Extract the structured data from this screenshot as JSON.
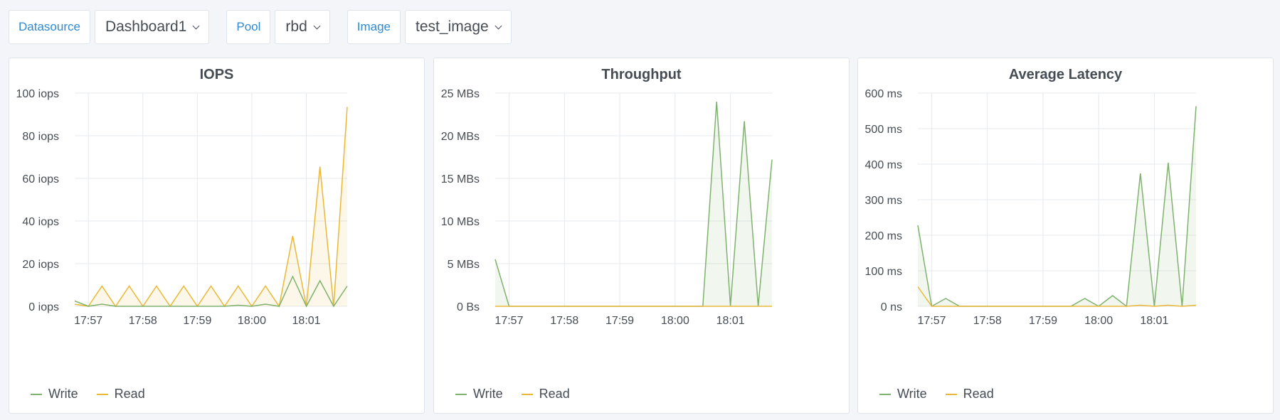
{
  "variables": [
    {
      "label": "Datasource",
      "value": "Dashboard1"
    },
    {
      "label": "Pool",
      "value": "rbd"
    },
    {
      "label": "Image",
      "value": "test_image"
    }
  ],
  "colors": {
    "write": "#7eb26d",
    "read": "#eab839"
  },
  "x_ticks": [
    "17:57",
    "17:58",
    "17:59",
    "18:00",
    "18:01"
  ],
  "panels": [
    {
      "title": "IOPS",
      "legend": [
        "Write",
        "Read"
      ],
      "chart_data": {
        "type": "line",
        "y_unit": "iops",
        "ylim": [
          0,
          100
        ],
        "y_ticks": [
          0,
          20,
          40,
          60,
          80,
          100
        ],
        "y_tick_labels": [
          "0 iops",
          "20 iops",
          "40 iops",
          "60 iops",
          "80 iops",
          "100 iops"
        ],
        "x_tick_labels": [
          "17:57",
          "17:58",
          "17:59",
          "18:00",
          "18:01"
        ],
        "x_ticks_at": [
          1,
          5,
          9,
          13,
          17
        ],
        "x_count": 21,
        "grid": true,
        "legend_position": "bottom-left",
        "series": [
          {
            "name": "Write",
            "color": "#7eb26d",
            "fill": false,
            "values": [
              2.5,
              0,
              1,
              0,
              0,
              0,
              0,
              0,
              0,
              0,
              0,
              0,
              0.5,
              0,
              1,
              0,
              14,
              0,
              12,
              0,
              9.5
            ]
          },
          {
            "name": "Read",
            "color": "#eab839",
            "fill": true,
            "values": [
              1,
              0,
              9.5,
              0,
              9.5,
              0,
              9.5,
              0,
              9.5,
              0,
              9.5,
              0,
              9.5,
              0,
              9.5,
              0,
              33,
              0,
              65.5,
              0,
              93.5
            ]
          }
        ]
      }
    },
    {
      "title": "Throughput",
      "legend": [
        "Write",
        "Read"
      ],
      "chart_data": {
        "type": "line",
        "y_unit": "bytes/s",
        "ylim": [
          0,
          25
        ],
        "y_ticks": [
          0,
          5,
          10,
          15,
          20,
          25
        ],
        "y_tick_labels": [
          "0 Bs",
          "5 MBs",
          "10 MBs",
          "15 MBs",
          "20 MBs",
          "25 MBs"
        ],
        "x_tick_labels": [
          "17:57",
          "17:58",
          "17:59",
          "18:00",
          "18:01"
        ],
        "x_ticks_at": [
          1,
          5,
          9,
          13,
          17
        ],
        "x_count": 21,
        "grid": true,
        "legend_position": "bottom-left",
        "series": [
          {
            "name": "Write",
            "color": "#7eb26d",
            "fill": true,
            "values": [
              5.5,
              0,
              0,
              0,
              0,
              0,
              0,
              0,
              0,
              0,
              0,
              0,
              0,
              0,
              0,
              0,
              24,
              0,
              21.7,
              0,
              17.2
            ]
          },
          {
            "name": "Read",
            "color": "#eab839",
            "fill": false,
            "values": [
              0,
              0,
              0,
              0,
              0,
              0,
              0,
              0,
              0,
              0,
              0,
              0,
              0,
              0,
              0,
              0,
              0,
              0,
              0,
              0,
              0
            ]
          }
        ]
      }
    },
    {
      "title": "Average Latency",
      "legend": [
        "Write",
        "Read"
      ],
      "chart_data": {
        "type": "line",
        "y_unit": "ms",
        "ylim": [
          0,
          600
        ],
        "y_ticks": [
          0,
          100,
          200,
          300,
          400,
          500,
          600
        ],
        "y_tick_labels": [
          "0 ns",
          "100 ms",
          "200 ms",
          "300 ms",
          "400 ms",
          "500 ms",
          "600 ms"
        ],
        "x_tick_labels": [
          "17:57",
          "17:58",
          "17:59",
          "18:00",
          "18:01"
        ],
        "x_ticks_at": [
          1,
          5,
          9,
          13,
          17
        ],
        "x_count": 21,
        "grid": true,
        "legend_position": "bottom-left",
        "series": [
          {
            "name": "Write",
            "color": "#7eb26d",
            "fill": true,
            "values": [
              228,
              0,
              22,
              0,
              0,
              0,
              0,
              0,
              0,
              0,
              0,
              0,
              22,
              0,
              30,
              0,
              374,
              0,
              404,
              0,
              563
            ]
          },
          {
            "name": "Read",
            "color": "#eab839",
            "fill": false,
            "values": [
              55,
              0,
              0,
              0,
              0,
              0,
              0,
              0,
              0,
              0,
              0,
              0,
              0,
              0,
              0,
              0,
              3,
              0,
              3,
              0,
              3
            ]
          }
        ]
      }
    }
  ]
}
